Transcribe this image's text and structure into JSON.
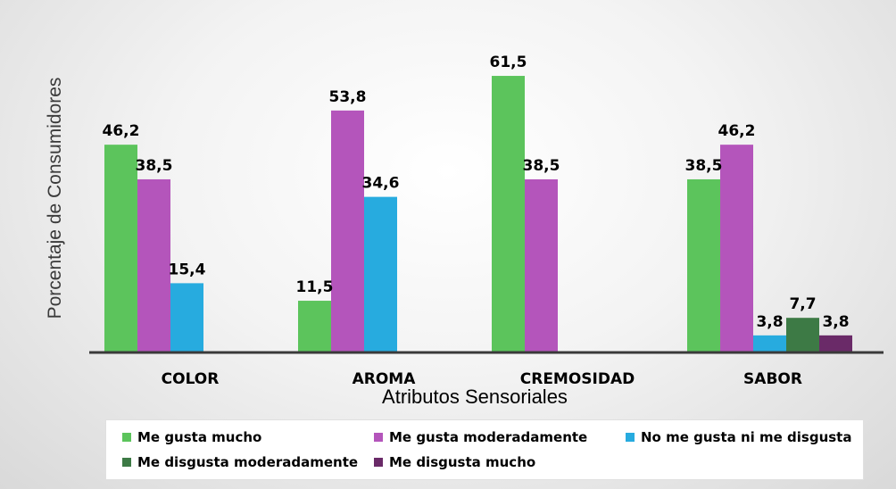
{
  "chart_data": {
    "type": "bar",
    "xlabel": "Atributos Sensoriales",
    "ylabel": "Porcentaje de Consumidores",
    "categories": [
      "COLOR",
      "AROMA",
      "CREMOSIDAD",
      "SABOR"
    ],
    "ylim": [
      0,
      65
    ],
    "grid": false,
    "legend_position": "bottom",
    "series": [
      {
        "name": "Me gusta mucho",
        "color": "#5cc45c",
        "values": [
          46.2,
          11.5,
          61.5,
          38.5
        ],
        "labels": [
          "46,2",
          "11,5",
          "61,5",
          "38,5"
        ]
      },
      {
        "name": "Me gusta moderadamente",
        "color": "#b455bb",
        "values": [
          38.5,
          53.8,
          38.5,
          46.2
        ],
        "labels": [
          "38,5",
          "53,8",
          "38,5",
          "46,2"
        ]
      },
      {
        "name": "No me gusta ni me disgusta",
        "color": "#27abdf",
        "values": [
          15.4,
          34.6,
          null,
          3.8
        ],
        "labels": [
          "15,4",
          "34,6",
          "",
          "3,8"
        ]
      },
      {
        "name": "Me disgusta moderadamente",
        "color": "#3d7a45",
        "values": [
          null,
          null,
          null,
          7.7
        ],
        "labels": [
          "",
          "",
          "",
          "7,7"
        ]
      },
      {
        "name": "Me disgusta mucho",
        "color": "#6a2a68",
        "values": [
          null,
          null,
          null,
          3.8
        ],
        "labels": [
          "",
          "",
          "",
          "3,8"
        ]
      }
    ]
  }
}
